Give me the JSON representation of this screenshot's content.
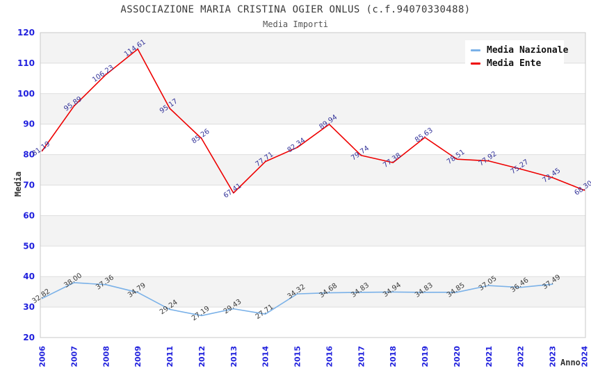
{
  "chart_data": {
    "type": "line",
    "title": "ASSOCIAZIONE MARIA CRISTINA OGIER ONLUS (c.f.94070330488)",
    "subtitle": "Media Importi",
    "xlabel": "Anno",
    "ylabel": "Media",
    "ylim": [
      20,
      120
    ],
    "ytick_step": 10,
    "ytick_labels": [
      "20",
      "30",
      "40",
      "50",
      "60",
      "70",
      "80",
      "90",
      "100",
      "110",
      "120"
    ],
    "grid": true,
    "legend_position": "top-right",
    "categories": [
      "2006",
      "2007",
      "2008",
      "2009",
      "2011",
      "2012",
      "2013",
      "2014",
      "2015",
      "2016",
      "2017",
      "2018",
      "2019",
      "2020",
      "2021",
      "2022",
      "2023",
      "2024"
    ],
    "series": [
      {
        "name": "Media Nazionale",
        "color": "#7ab1e8",
        "label_color": "#3a3a3a",
        "values": [
          "32.82",
          "38.00",
          "37.36",
          "34.79",
          "29.24",
          "27.19",
          "29.43",
          "27.71",
          "34.32",
          "34.68",
          "34.83",
          "34.94",
          "34.83",
          "34.85",
          "37.05",
          "36.46",
          "37.49",
          null
        ]
      },
      {
        "name": "Media Ente",
        "color": "#ee0000",
        "label_color": "#333399",
        "values": [
          "81.19",
          "95.89",
          "106.23",
          "114.61",
          "95.17",
          "85.26",
          "67.41",
          "77.71",
          "82.34",
          "89.94",
          "79.74",
          "77.38",
          "85.63",
          "78.51",
          "77.92",
          "75.27",
          "72.45",
          "68.30"
        ]
      }
    ],
    "style": {
      "axis_tick_color": "#2020dd",
      "band_fill": "#f3f3f3",
      "gridline_color": "#dedede",
      "plot_border_color": "#c8c8c8",
      "background": "#ffffff"
    }
  }
}
